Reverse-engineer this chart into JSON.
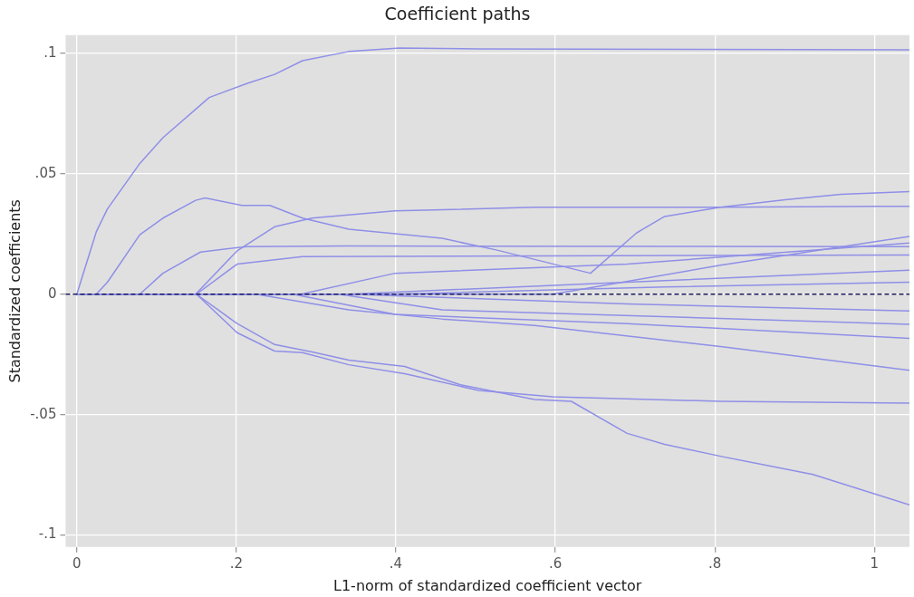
{
  "chart_data": {
    "type": "line",
    "title": "Coefficient paths",
    "xlabel": "L1-norm of standardized coefficient vector",
    "ylabel": "Standardized coefficients",
    "xlim": [
      -0.014,
      1.044
    ],
    "ylim": [
      -0.105,
      0.1076
    ],
    "xticks": [
      0,
      {
        "value": 0.2,
        "label": ".2"
      },
      {
        "value": 0.4,
        "label": ".4"
      },
      {
        "value": 0.6,
        "label": ".6"
      },
      {
        "value": 0.8,
        "label": ".8"
      },
      1
    ],
    "yticks": [
      {
        "value": -0.1,
        "label": "-.1"
      },
      {
        "value": -0.05,
        "label": "-.05"
      },
      0,
      {
        "value": 0.05,
        "label": ".05"
      },
      {
        "value": 0.1,
        "label": ".1"
      }
    ],
    "grid": true,
    "legend": false,
    "marker": "none",
    "line_style": "solid",
    "ref_lines": [
      {
        "axis": "y",
        "value": 0,
        "color": "#1a1a5e",
        "line_style": "dashed"
      }
    ],
    "series": [
      {
        "color": "#8f8fe8",
        "x": [
          0,
          0.0244,
          0.0384,
          0.0792,
          0.108,
          0.166,
          0.213,
          0.248,
          0.283,
          0.341,
          0.405,
          0.504,
          1.044
        ],
        "values": [
          0,
          0.0259,
          0.0354,
          0.0544,
          0.065,
          0.0817,
          0.0875,
          0.0913,
          0.097,
          0.1008,
          0.1023,
          0.1019,
          0.1015
        ]
      },
      {
        "color": "#8f8fe8",
        "x": [
          0,
          0.0244,
          0.0384,
          0.079,
          0.108,
          0.149,
          0.161,
          0.207,
          0.242,
          0.283,
          0.341,
          0.458,
          0.527,
          0.644,
          0.702,
          0.737,
          0.807,
          1,
          1.044
        ],
        "values": [
          0,
          0,
          0.005,
          0.0247,
          0.0316,
          0.039,
          0.04,
          0.0369,
          0.0369,
          0.0316,
          0.027,
          0.0232,
          0.0183,
          0.0087,
          0.0255,
          0.0323,
          0.0361,
          0.0365,
          0.0365
        ]
      },
      {
        "color": "#8f8fe8",
        "x": [
          0,
          0.149,
          0.201,
          0.248,
          0.295,
          0.399,
          0.574,
          0.807,
          0.888,
          0.958,
          1.044
        ],
        "values": [
          0,
          0,
          0.018,
          0.028,
          0.0316,
          0.0346,
          0.0361,
          0.0361,
          0.0392,
          0.0415,
          0.0426
        ]
      },
      {
        "color": "#8f8fe8",
        "x": [
          0,
          0.079,
          0.108,
          0.155,
          0.213,
          0.341,
          1.044
        ],
        "values": [
          0,
          0,
          0.0087,
          0.0175,
          0.0198,
          0.02,
          0.0198
        ]
      },
      {
        "color": "#8f8fe8",
        "x": [
          0,
          0.15,
          0.201,
          0.283,
          1.044
        ],
        "values": [
          0,
          0,
          0.0125,
          0.0156,
          0.0163
        ]
      },
      {
        "color": "#8f8fe8",
        "x": [
          0,
          0.281,
          0.399,
          0.69,
          1.044
        ],
        "values": [
          0,
          0,
          0.0087,
          0.0125,
          0.0213
        ]
      },
      {
        "color": "#8f8fe8",
        "x": [
          0,
          0.597,
          0.807,
          1.044
        ],
        "values": [
          0,
          0,
          0.012,
          0.024
        ]
      },
      {
        "color": "#8f8fe8",
        "x": [
          0,
          0.341,
          0.69,
          1.044
        ],
        "values": [
          0,
          0,
          0.005,
          0.01
        ]
      },
      {
        "color": "#8f8fe8",
        "x": [
          0,
          0.399,
          0.737,
          1.044
        ],
        "values": [
          0,
          0,
          0.003,
          0.005
        ]
      },
      {
        "color": "#8f8fe8",
        "x": [
          0,
          0.15,
          0.201,
          0.248,
          0.283,
          0.341,
          0.411,
          0.504,
          0.597,
          0.807,
          1.044
        ],
        "values": [
          0,
          0,
          -0.016,
          -0.0236,
          -0.0243,
          -0.0293,
          -0.033,
          -0.04,
          -0.0426,
          -0.0445,
          -0.0452
        ]
      },
      {
        "color": "#8f8fe8",
        "x": [
          0,
          0.15,
          0.201,
          0.248,
          0.295,
          0.341,
          0.411,
          0.481,
          0.574,
          0.62,
          0.69,
          0.737,
          0.807,
          0.923,
          1.044
        ],
        "values": [
          0,
          0,
          -0.0122,
          -0.0209,
          -0.024,
          -0.0274,
          -0.03,
          -0.0376,
          -0.0437,
          -0.0445,
          -0.0578,
          -0.0624,
          -0.0673,
          -0.0749,
          -0.0875
        ]
      },
      {
        "color": "#8f8fe8",
        "x": [
          0,
          0.225,
          0.341,
          0.458,
          0.574,
          0.807,
          1.044
        ],
        "values": [
          0,
          0,
          -0.0065,
          -0.0103,
          -0.013,
          -0.0217,
          -0.0316
        ]
      },
      {
        "color": "#8f8fe8",
        "x": [
          0,
          0.271,
          0.399,
          0.69,
          1.044
        ],
        "values": [
          0,
          0,
          -0.0084,
          -0.0122,
          -0.0183
        ]
      },
      {
        "color": "#8f8fe8",
        "x": [
          0,
          0.329,
          0.458,
          1.044
        ],
        "values": [
          0,
          0,
          -0.0065,
          -0.0125
        ]
      },
      {
        "color": "#8f8fe8",
        "x": [
          0,
          0.341,
          0.69,
          1.044
        ],
        "values": [
          0,
          0,
          -0.004,
          -0.007
        ]
      }
    ]
  }
}
